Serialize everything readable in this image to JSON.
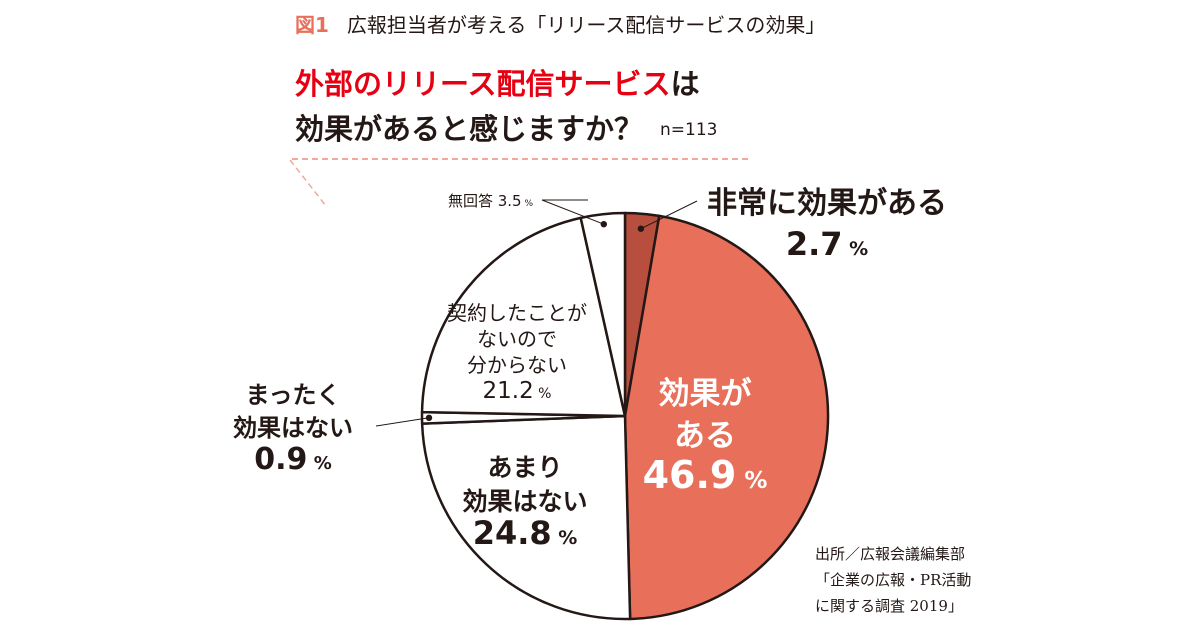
{
  "figure": {
    "number": "図1",
    "title": "広報担当者が考える「リリース配信サービスの効果」"
  },
  "question": {
    "highlight": "外部のリリース配信サービス",
    "rest": "は",
    "line2": "効果があると感じますか？",
    "n": "n=113"
  },
  "source": {
    "line1": "出所／広報会議編集部",
    "line2": "「企業の広報・PR活動",
    "line3": "に関する調査 2019」"
  },
  "colors": {
    "very_effective": "#b84e3e",
    "effective": "#e8705a",
    "other": "#ffffff",
    "stroke": "#231815",
    "accent": "#e60012"
  },
  "chart_data": {
    "type": "pie",
    "title": "",
    "n": 113,
    "unit": "%",
    "slices": [
      {
        "label": "非常に効果がある",
        "value": 2.7,
        "display": "2.7"
      },
      {
        "label": "効果がある",
        "value": 46.9,
        "display": "46.9"
      },
      {
        "label": "あまり効果はない",
        "value": 24.8,
        "display": "24.8"
      },
      {
        "label": "まったく効果はない",
        "value": 0.9,
        "display": "0.9"
      },
      {
        "label": "契約したことがないので分からない",
        "value": 21.2,
        "display": "21.2"
      },
      {
        "label": "無回答",
        "value": 3.5,
        "display": "3.5"
      }
    ],
    "start_angle": "12 o'clock",
    "direction": "clockwise"
  }
}
